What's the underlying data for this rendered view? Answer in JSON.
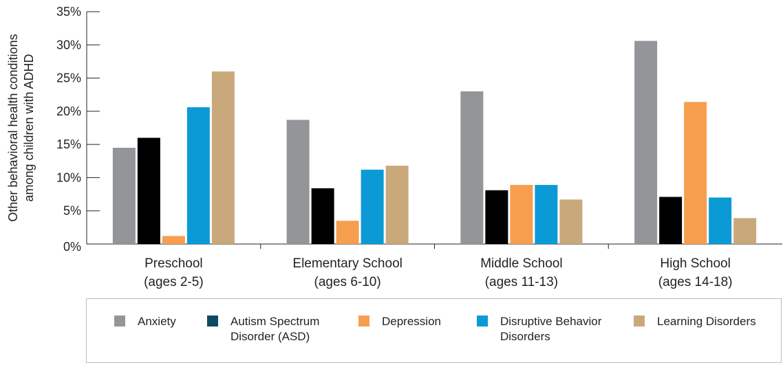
{
  "chart_data": {
    "type": "bar",
    "ylabel_lines": [
      "Other behavioral health conditions",
      "among children with ADHD"
    ],
    "yticks": [
      "0%",
      "5%",
      "10%",
      "15%",
      "20%",
      "25%",
      "30%",
      "35%"
    ],
    "ylim": [
      0,
      35
    ],
    "grid": false,
    "legend_position": "bottom",
    "categories": [
      {
        "line1": "Preschool",
        "line2": "(ages 2-5)"
      },
      {
        "line1": "Elementary School",
        "line2": "(ages 6-10)"
      },
      {
        "line1": "Middle School",
        "line2": "(ages 11-13)"
      },
      {
        "line1": "High School",
        "line2": "(ages 14-18)"
      }
    ],
    "series": [
      {
        "name": "Anxiety",
        "color": "#939598",
        "values": [
          14.5,
          18.7,
          23.0,
          30.6
        ]
      },
      {
        "name": "Autism Spectrum\nDisorder (ASD)",
        "color": "#000000",
        "values": [
          16.0,
          8.4,
          8.1,
          7.1
        ]
      },
      {
        "name": "Depression",
        "color": "#f79e4f",
        "values": [
          1.2,
          3.5,
          8.9,
          21.4
        ]
      },
      {
        "name": "Disruptive Behavior\nDisorders",
        "color": "#0b9ad6",
        "values": [
          20.6,
          11.2,
          8.9,
          7.0
        ]
      },
      {
        "name": "Learning Disorders",
        "color": "#c9a97c",
        "values": [
          26.0,
          11.8,
          6.7,
          3.9
        ]
      }
    ],
    "legend_swatch_colors": [
      "#939598",
      "#0c4a64",
      "#f79e4f",
      "#0b9ad6",
      "#c9a97c"
    ]
  }
}
